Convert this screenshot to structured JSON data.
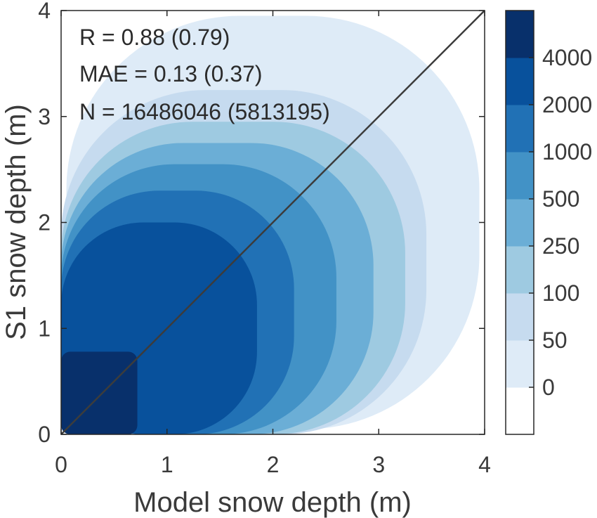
{
  "chart_data": {
    "type": "heatmap",
    "xlabel": "Model snow depth (m)",
    "ylabel": "S1 snow depth (m)",
    "xlim": [
      0,
      4
    ],
    "ylim": [
      0,
      4
    ],
    "x_ticks": [
      "0",
      "1",
      "2",
      "3",
      "4"
    ],
    "y_ticks": [
      "0",
      "1",
      "2",
      "3",
      "4"
    ],
    "grid": false,
    "one_to_one_line": true,
    "annotations": [
      "R = 0.88 (0.79)",
      "MAE = 0.13 (0.37)",
      "N = 16486046 (5813195)"
    ],
    "colorbar": {
      "tick_labels": [
        "0",
        "50",
        "100",
        "250",
        "500",
        "1000",
        "2000",
        "4000"
      ],
      "colors": [
        "#ffffff",
        "#deebf7",
        "#c6dbef",
        "#9ecae1",
        "#6baed6",
        "#4292c6",
        "#2171b5",
        "#08519c",
        "#08306b"
      ]
    },
    "density_levels": [
      {
        "level": 1,
        "x0": 0.05,
        "y0": 0.05,
        "x1": 3.95,
        "y1": 3.95
      },
      {
        "level": 2,
        "x0": 0.0,
        "y0": 0.0,
        "x1": 3.45,
        "y1": 3.25
      },
      {
        "level": 3,
        "x0": 0.0,
        "y0": 0.0,
        "x1": 3.25,
        "y1": 2.95
      },
      {
        "level": 4,
        "x0": 0.0,
        "y0": 0.0,
        "x1": 2.95,
        "y1": 2.75
      },
      {
        "level": 5,
        "x0": 0.0,
        "y0": 0.0,
        "x1": 2.6,
        "y1": 2.55
      },
      {
        "level": 6,
        "x0": 0.0,
        "y0": 0.0,
        "x1": 2.2,
        "y1": 2.3
      },
      {
        "level": 7,
        "x0": 0.0,
        "y0": 0.0,
        "x1": 1.85,
        "y1": 2.0
      },
      {
        "level": 8,
        "x0": 0.0,
        "y0": 0.0,
        "x1": 0.72,
        "y1": 0.78
      }
    ]
  }
}
